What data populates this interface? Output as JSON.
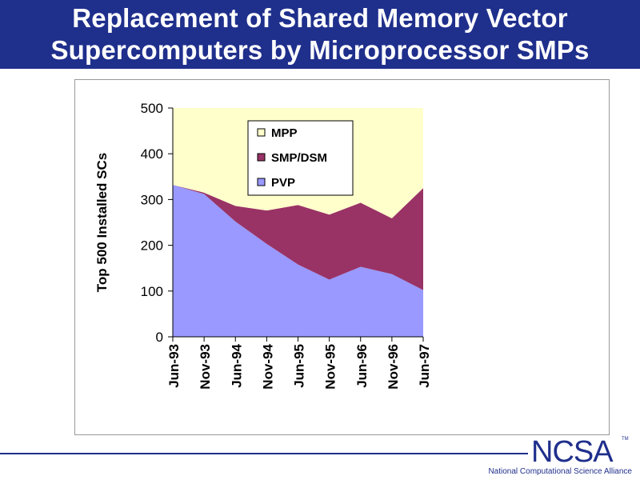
{
  "slide": {
    "title_line1": "Replacement of Shared Memory Vector",
    "title_line2": "Supercomputers by Microprocessor SMPs",
    "logo_text": "NCSA",
    "logo_tm": "TM",
    "footer_caption": "National Computational Science Alliance"
  },
  "colors": {
    "title_bar": "#1f2f8c",
    "mpp": "#ffffcc",
    "smp_dsm": "#993366",
    "pvp": "#9999ff"
  },
  "chart_data": {
    "type": "area",
    "stacked": true,
    "title": "",
    "xlabel": "",
    "ylabel": "Top 500 Installed SCs",
    "ylim": [
      0,
      500
    ],
    "yticks": [
      0,
      100,
      200,
      300,
      400,
      500
    ],
    "categories": [
      "Jun-93",
      "Nov-93",
      "Jun-94",
      "Nov-94",
      "Jun-95",
      "Nov-95",
      "Jun-96",
      "Nov-96",
      "Jun-97"
    ],
    "series": [
      {
        "name": "PVP",
        "color": "#9999ff",
        "values": [
          332,
          312,
          252,
          203,
          158,
          125,
          153,
          137,
          102
        ]
      },
      {
        "name": "SMP/DSM",
        "color": "#993366",
        "values": [
          0,
          3,
          34,
          73,
          130,
          142,
          140,
          122,
          223
        ]
      },
      {
        "name": "MPP",
        "color": "#ffffcc",
        "values": [
          168,
          185,
          214,
          224,
          212,
          233,
          207,
          241,
          175
        ]
      }
    ],
    "legend": {
      "position": "top-center",
      "order": [
        "MPP",
        "SMP/DSM",
        "PVP"
      ]
    },
    "grid": false
  }
}
